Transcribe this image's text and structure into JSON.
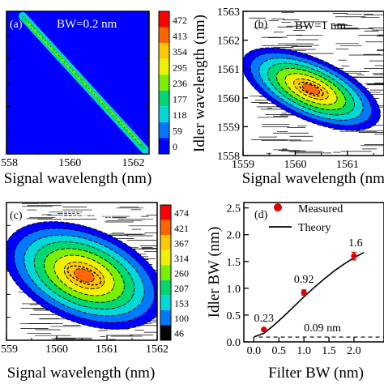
{
  "chart_data": [
    {
      "type": "heatmap",
      "panel": "(a)",
      "annotation": "BW=0.2 nm",
      "xlabel": "Signal wavelength (nm)",
      "ylabel": "",
      "x_ticks": [
        "1558",
        "1560",
        "1562"
      ],
      "xlim": [
        1558,
        1562.5
      ],
      "ylim": [
        1558,
        1563
      ],
      "colorbar": {
        "labels": [
          "472",
          "413",
          "354",
          "295",
          "236",
          "177",
          "118",
          "59",
          "0"
        ],
        "colors": [
          "#ff0000",
          "#ff6600",
          "#ffc800",
          "#eef200",
          "#7af000",
          "#00d870",
          "#00d8d8",
          "#0078ff",
          "#0000ff"
        ]
      }
    },
    {
      "type": "heatmap",
      "panel": "(b)",
      "annotation": "BW=1 nm",
      "xlabel": "Signal wavelength (nm)",
      "ylabel": "Idler wavelength (nm)",
      "x_ticks": [
        "1559",
        "1560",
        "1561"
      ],
      "y_ticks": [
        "1563",
        "1562",
        "1561",
        "1560",
        "1559",
        "1558"
      ],
      "xlim": [
        1559,
        1561.7
      ],
      "ylim": [
        1558,
        1563
      ]
    },
    {
      "type": "heatmap",
      "panel": "(c)",
      "annotation": "BW=2 nm",
      "xlabel": "Signal wavelength (nm)",
      "ylabel": "",
      "x_ticks": [
        "1559",
        "1560",
        "1561",
        "1562"
      ],
      "xlim": [
        1559,
        1562
      ],
      "colorbar": {
        "labels": [
          "474",
          "421",
          "367",
          "314",
          "260",
          "207",
          "153",
          "100",
          "46"
        ],
        "colors": [
          "#ff0000",
          "#ff6600",
          "#ffc800",
          "#eef200",
          "#7af000",
          "#00d870",
          "#00d8d8",
          "#0078ff",
          "#000000"
        ]
      }
    },
    {
      "type": "scatter",
      "panel": "(d)",
      "xlabel": "Filter BW (nm)",
      "ylabel": "Idler BW (nm)",
      "x_ticks": [
        "0.0",
        "0.5",
        "1.0",
        "1.5",
        "2.0"
      ],
      "y_ticks": [
        "0.0",
        "0.5",
        "1.0",
        "1.5",
        "2.0",
        "2.5"
      ],
      "xlim": [
        -0.2,
        2.6
      ],
      "ylim": [
        0,
        2.6
      ],
      "legend": [
        "Measured",
        "Theory"
      ],
      "series": [
        {
          "name": "Measured",
          "x": [
            0.2,
            1.0,
            2.0
          ],
          "y": [
            0.23,
            0.92,
            1.6
          ],
          "error": [
            0.02,
            0.05,
            0.07
          ]
        },
        {
          "name": "Theory",
          "x": [
            0.0,
            0.2,
            0.4,
            0.6,
            0.8,
            1.0,
            1.2,
            1.4,
            1.6,
            1.8,
            2.0,
            2.2
          ],
          "y": [
            0.09,
            0.16,
            0.31,
            0.48,
            0.66,
            0.84,
            1.01,
            1.17,
            1.32,
            1.45,
            1.57,
            1.67
          ]
        }
      ],
      "reference_line": {
        "y": 0.09
      },
      "annotations": [
        "0.23",
        "0.92",
        "1.6",
        "0.09 nm"
      ]
    }
  ]
}
